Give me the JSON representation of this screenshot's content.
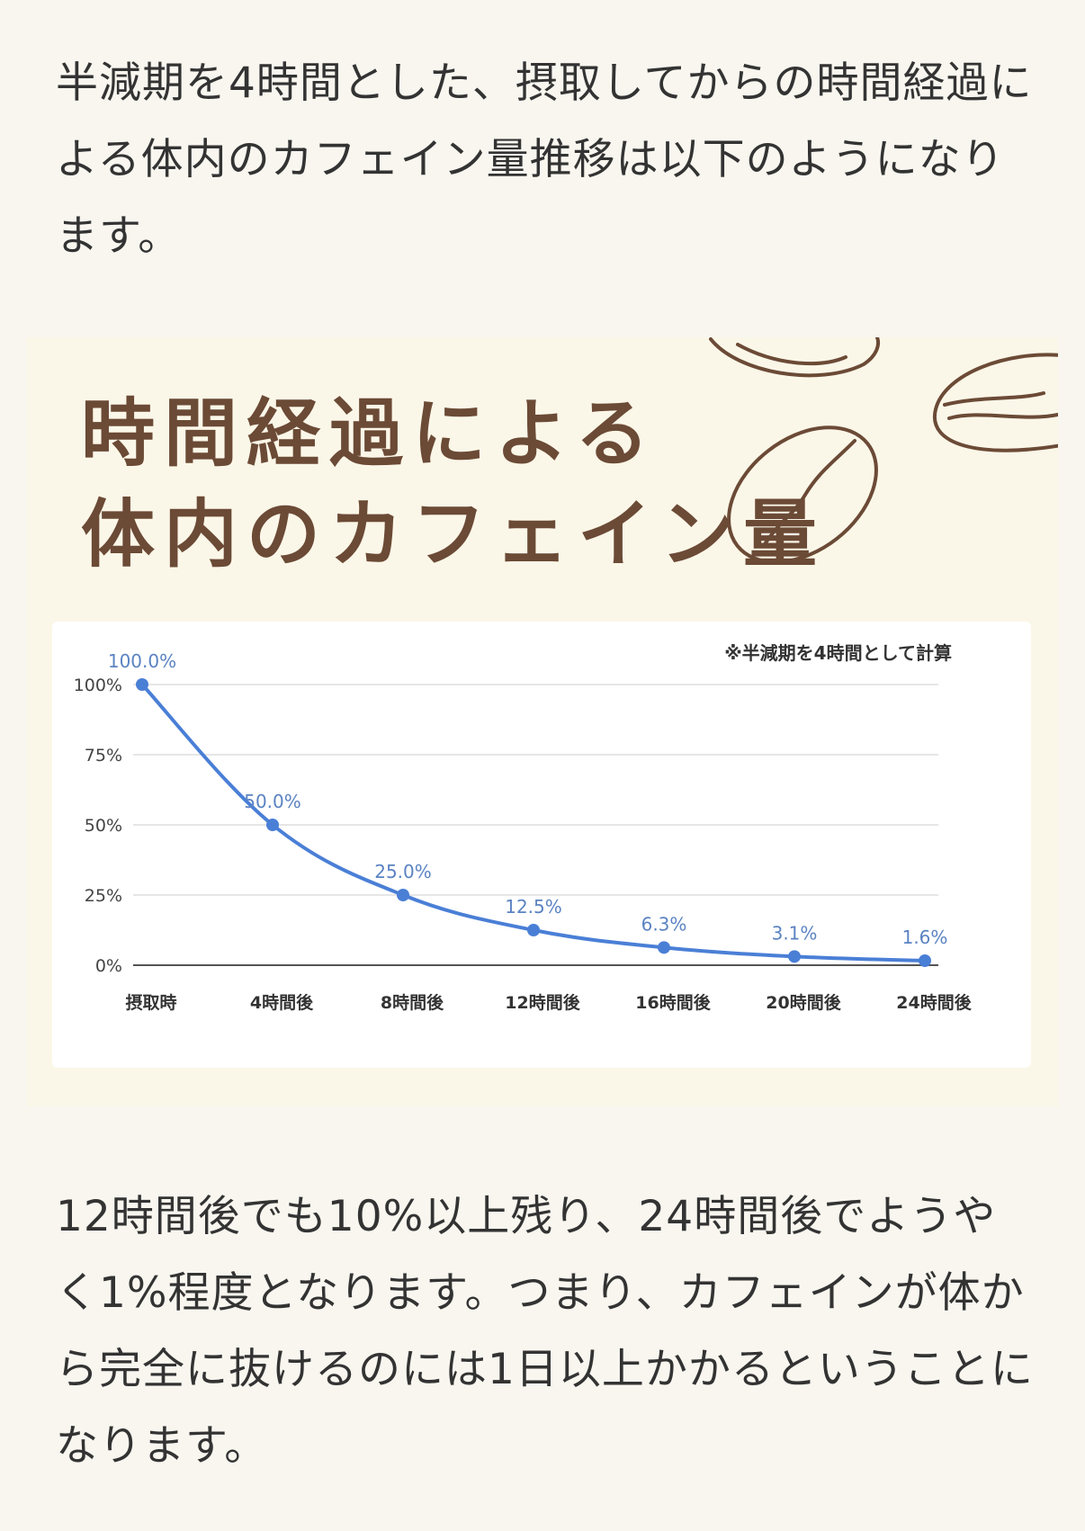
{
  "article": {
    "intro": "半減期を4時間とした、摂取してからの時間経過による体内のカフェイン量推移は以下のようになります。",
    "conclusion": "12時間後でも10%以上残り、24時間後でようやく1%程度となります。つまり、カフェインが体から完全に抜けるのには1日以上かかるということになります。"
  },
  "figure": {
    "title_line1": "時間経過による",
    "title_line2": "体内のカフェイン量",
    "note": "※半減期を4時間として計算",
    "decoration_icon": "coffee-bean-icon",
    "colors": {
      "title": "#6b4a36",
      "line": "#4a7fd6",
      "data_label": "#5b83c2",
      "background": "#fbf7e8"
    }
  },
  "chart_data": {
    "type": "line",
    "categories": [
      "摂取時",
      "4時間後",
      "8時間後",
      "12時間後",
      "16時間後",
      "20時間後",
      "24時間後"
    ],
    "series": [
      {
        "values": [
          100.0,
          50.0,
          25.0,
          12.5,
          6.3,
          3.1,
          1.6
        ],
        "labels": [
          "100.0%",
          "50.0%",
          "25.0%",
          "12.5%",
          "6.3%",
          "3.1%",
          "1.6%"
        ]
      }
    ],
    "y_ticks": [
      "0%",
      "25%",
      "50%",
      "75%",
      "100%"
    ],
    "y_tick_values": [
      0,
      25,
      50,
      75,
      100
    ],
    "ylim": [
      0,
      100
    ],
    "grid": true,
    "title": "",
    "xlabel": "",
    "ylabel": ""
  }
}
